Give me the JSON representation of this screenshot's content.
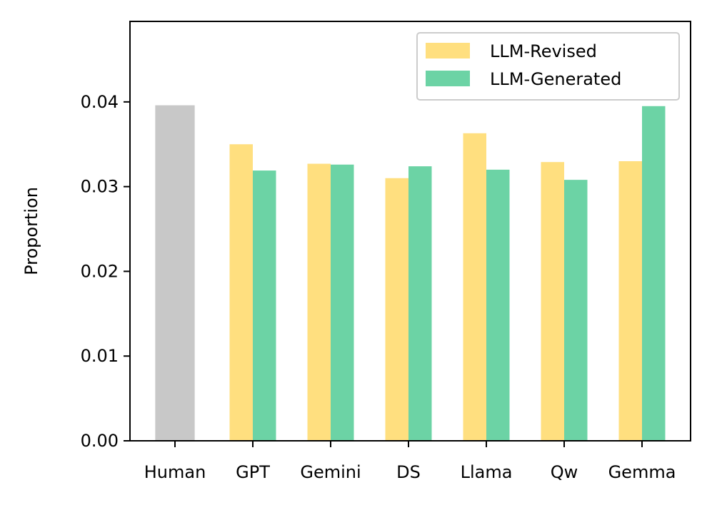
{
  "chart_data": {
    "type": "bar",
    "title": "",
    "xlabel": "",
    "ylabel": "Proportion",
    "ylim": [
      0,
      0.0495
    ],
    "yticks": [
      0.0,
      0.01,
      0.02,
      0.03,
      0.04
    ],
    "ytick_labels": [
      "0.00",
      "0.01",
      "0.02",
      "0.03",
      "0.04"
    ],
    "categories": [
      "Human",
      "GPT",
      "Gemini",
      "DS",
      "Llama",
      "Qw",
      "Gemma"
    ],
    "human": {
      "category": "Human",
      "value": 0.0396,
      "color": "#c8c8c8"
    },
    "series": [
      {
        "name": "LLM-Revised",
        "color": "#ffdf7f",
        "values": [
          null,
          0.035,
          0.0327,
          0.031,
          0.0363,
          0.0329,
          0.033
        ]
      },
      {
        "name": "LLM-Generated",
        "color": "#6cd3a5",
        "values": [
          null,
          0.0319,
          0.0326,
          0.0324,
          0.032,
          0.0308,
          0.0395
        ]
      }
    ],
    "legend_position": "top-right",
    "grid": false
  }
}
